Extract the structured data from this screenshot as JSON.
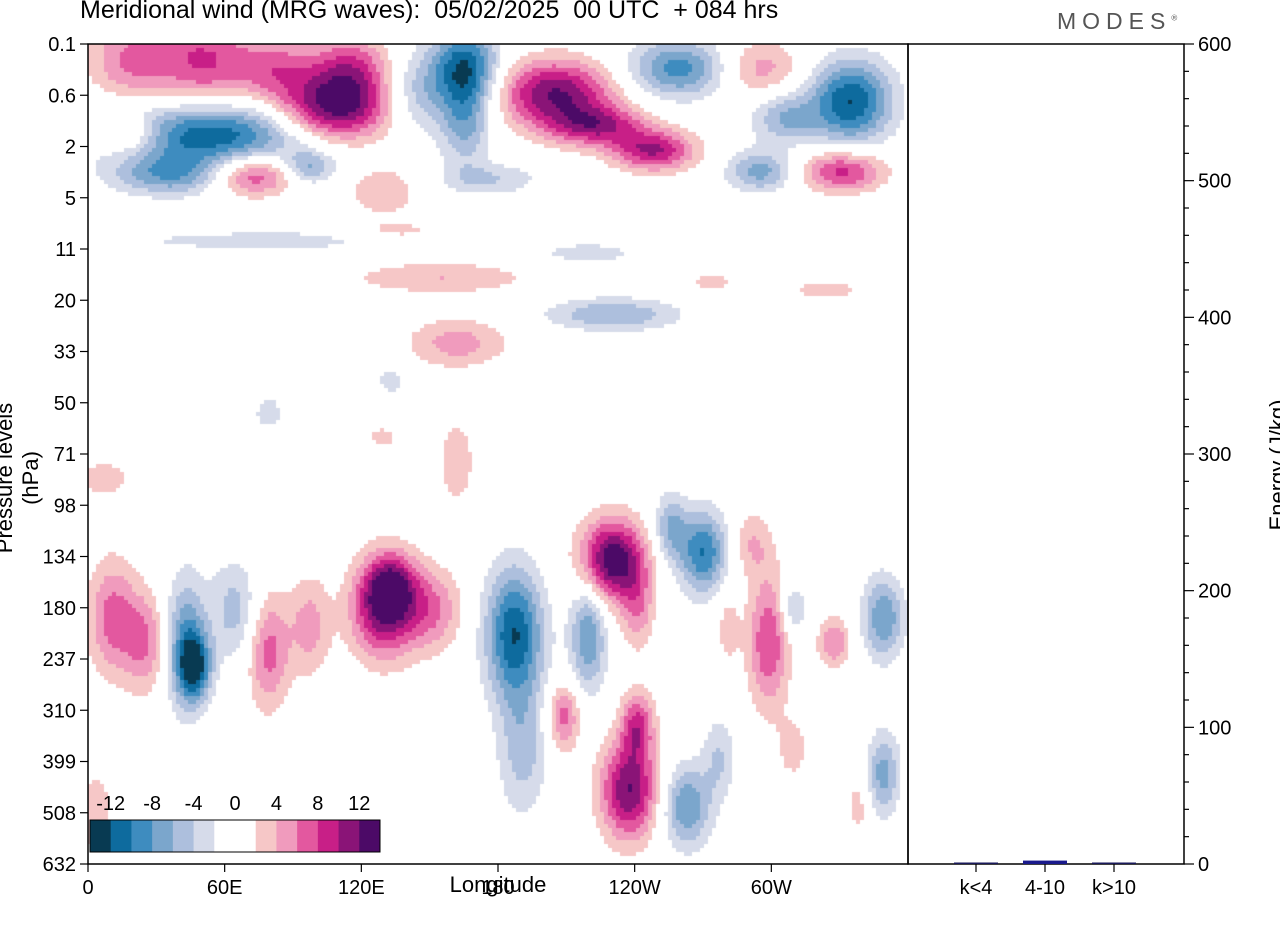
{
  "title": "Meridional wind (MRG waves):  05/02/2025  00 UTC  + 084 hrs",
  "logo": "MODES",
  "logo_mark": "®",
  "chart_data": [
    {
      "type": "heatmap",
      "title": "Meridional wind (MRG waves):  05/02/2025  00 UTC  + 084 hrs",
      "xlabel": "Longitude",
      "ylabel": "Pressure levels (hPa)",
      "x_ticks": [
        "0",
        "60E",
        "120E",
        "180",
        "120W",
        "60W"
      ],
      "y_ticks": [
        "0.1",
        "0.6",
        "2",
        "5",
        "11",
        "20",
        "33",
        "50",
        "71",
        "98",
        "134",
        "180",
        "237",
        "310",
        "399",
        "508",
        "632"
      ],
      "colorbar": {
        "labels": [
          "-12",
          "-8",
          "-4",
          "0",
          "4",
          "8",
          "12"
        ],
        "colors": [
          "#083a52",
          "#0e6b9e",
          "#3e8cbf",
          "#7ba6cc",
          "#adbfdd",
          "#d6dbea",
          "#ffffff",
          "#ffffff",
          "#f6c7c7",
          "#f09bbd",
          "#e3589f",
          "#c81f87",
          "#8a1477",
          "#4c0a67"
        ]
      },
      "levels": [
        -14,
        -12,
        -10,
        -8,
        -6,
        -4,
        -2,
        0,
        2,
        4,
        6,
        8,
        10,
        12,
        14
      ]
    },
    {
      "type": "bar",
      "ylabel": "Energy (J/kg)",
      "ylim": [
        0,
        600
      ],
      "y_ticks": [
        "0",
        "100",
        "200",
        "300",
        "400",
        "500",
        "600"
      ],
      "categories": [
        "k<4",
        "4-10",
        "k>10"
      ],
      "values": [
        0.6,
        2.5,
        0.3
      ],
      "colors": [
        "#1a1a5a",
        "#1a1a8c",
        "#1a1a5a"
      ]
    }
  ]
}
